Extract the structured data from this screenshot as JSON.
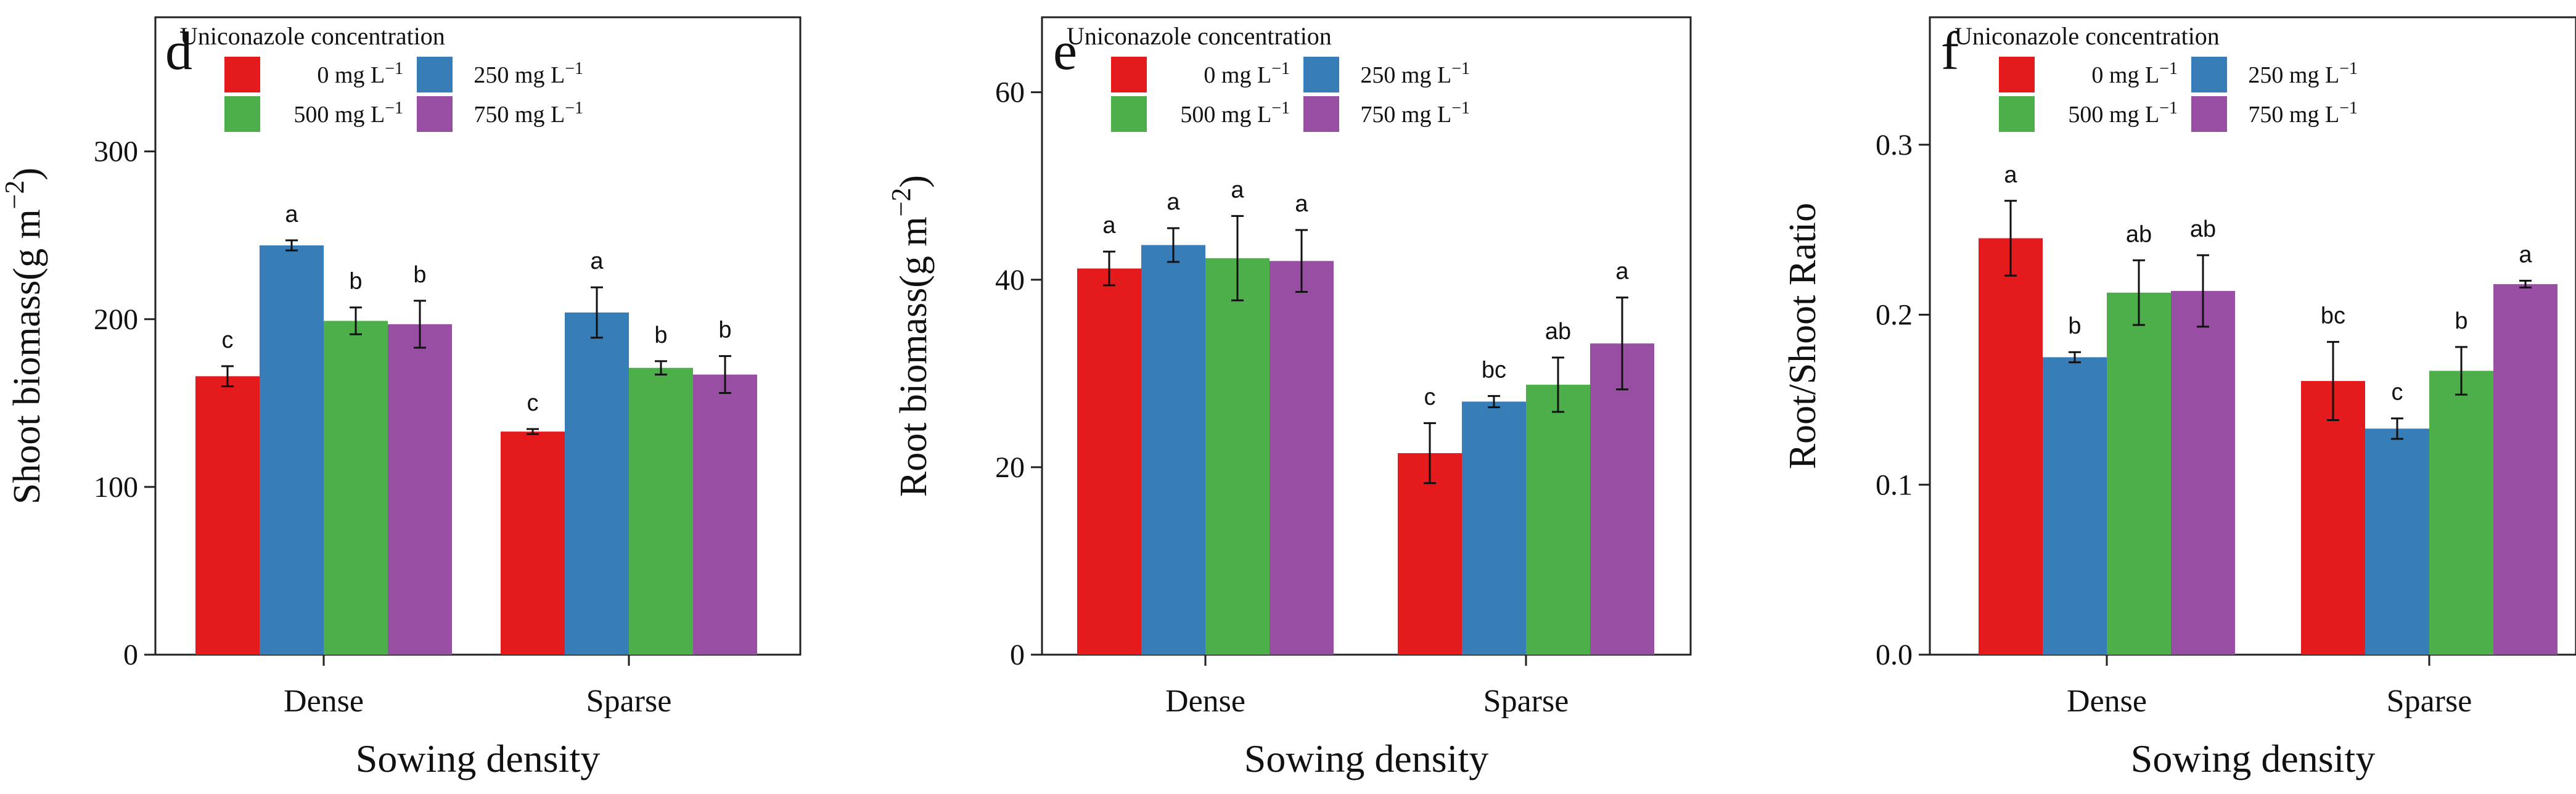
{
  "chart_data": [
    {
      "type": "bar",
      "panel_letter": "d",
      "ylabel": "Shoot biomass(g m",
      "ylabel_exp": "−2",
      "ylabel_close": ")",
      "xlabel": "Sowing density",
      "ylim": [
        0,
        380
      ],
      "yticks": [
        0,
        100,
        200,
        300
      ],
      "yticklabels": [
        "0",
        "100",
        "200",
        "300"
      ],
      "categories": [
        "Dense",
        "Sparse"
      ],
      "legend": {
        "title": "Uniconazole concentration",
        "position": "top-left"
      },
      "series": [
        {
          "name": "0 mg L",
          "values": [
            166,
            133
          ],
          "errors": [
            6,
            1.5
          ],
          "letters": [
            "c",
            "c"
          ],
          "color": "#e41a1c"
        },
        {
          "name": "250 mg L",
          "values": [
            244,
            204
          ],
          "errors": [
            3,
            15
          ],
          "letters": [
            "a",
            "a"
          ],
          "color": "#377eb8"
        },
        {
          "name": "500 mg L",
          "values": [
            199,
            171
          ],
          "errors": [
            8,
            4
          ],
          "letters": [
            "b",
            "b"
          ],
          "color": "#4daf4a"
        },
        {
          "name": "750 mg L",
          "values": [
            197,
            167
          ],
          "errors": [
            14,
            11
          ],
          "letters": [
            "b",
            "b"
          ],
          "color": "#984ea3"
        }
      ]
    },
    {
      "type": "bar",
      "panel_letter": "e",
      "ylabel": "Root biomass(g m",
      "ylabel_exp": "−2",
      "ylabel_close": ")",
      "xlabel": "Sowing density",
      "ylim": [
        0,
        68
      ],
      "yticks": [
        0,
        20,
        40,
        60
      ],
      "yticklabels": [
        "0",
        "20",
        "40",
        "60"
      ],
      "categories": [
        "Dense",
        "Sparse"
      ],
      "legend": {
        "title": "Uniconazole concentration",
        "position": "top-left"
      },
      "series": [
        {
          "name": "0 mg L",
          "values": [
            41.2,
            21.5
          ],
          "errors": [
            1.8,
            3.2
          ],
          "letters": [
            "a",
            "c"
          ],
          "color": "#e41a1c"
        },
        {
          "name": "250 mg L",
          "values": [
            43.7,
            27.0
          ],
          "errors": [
            1.8,
            0.6
          ],
          "letters": [
            "a",
            "bc"
          ],
          "color": "#377eb8"
        },
        {
          "name": "500 mg L",
          "values": [
            42.3,
            28.8
          ],
          "errors": [
            4.5,
            2.9
          ],
          "letters": [
            "a",
            "ab"
          ],
          "color": "#4daf4a"
        },
        {
          "name": "750 mg L",
          "values": [
            42.0,
            33.2
          ],
          "errors": [
            3.3,
            4.9
          ],
          "letters": [
            "a",
            "a"
          ],
          "color": "#984ea3"
        }
      ]
    },
    {
      "type": "bar",
      "panel_letter": "f",
      "ylabel": "Root/Shoot Ratio",
      "ylabel_exp": "",
      "ylabel_close": "",
      "xlabel": "Sowing density",
      "ylim": [
        0,
        0.375
      ],
      "yticks": [
        0,
        0.1,
        0.2,
        0.3
      ],
      "yticklabels": [
        "0.0",
        "0.1",
        "0.2",
        "0.3"
      ],
      "categories": [
        "Dense",
        "Sparse"
      ],
      "legend": {
        "title": "Uniconazole concentration",
        "position": "top-left"
      },
      "series": [
        {
          "name": "0 mg L",
          "values": [
            0.245,
            0.161
          ],
          "errors": [
            0.022,
            0.023
          ],
          "letters": [
            "a",
            "bc"
          ],
          "color": "#e41a1c"
        },
        {
          "name": "250 mg L",
          "values": [
            0.175,
            0.133
          ],
          "errors": [
            0.003,
            0.006
          ],
          "letters": [
            "b",
            "c"
          ],
          "color": "#377eb8"
        },
        {
          "name": "500 mg L",
          "values": [
            0.213,
            0.167
          ],
          "errors": [
            0.019,
            0.014
          ],
          "letters": [
            "ab",
            "b"
          ],
          "color": "#4daf4a"
        },
        {
          "name": "750 mg L",
          "values": [
            0.214,
            0.218
          ],
          "errors": [
            0.021,
            0.002
          ],
          "letters": [
            "ab",
            "a"
          ],
          "color": "#984ea3"
        }
      ]
    }
  ],
  "legend_unit_exponent": "−1"
}
